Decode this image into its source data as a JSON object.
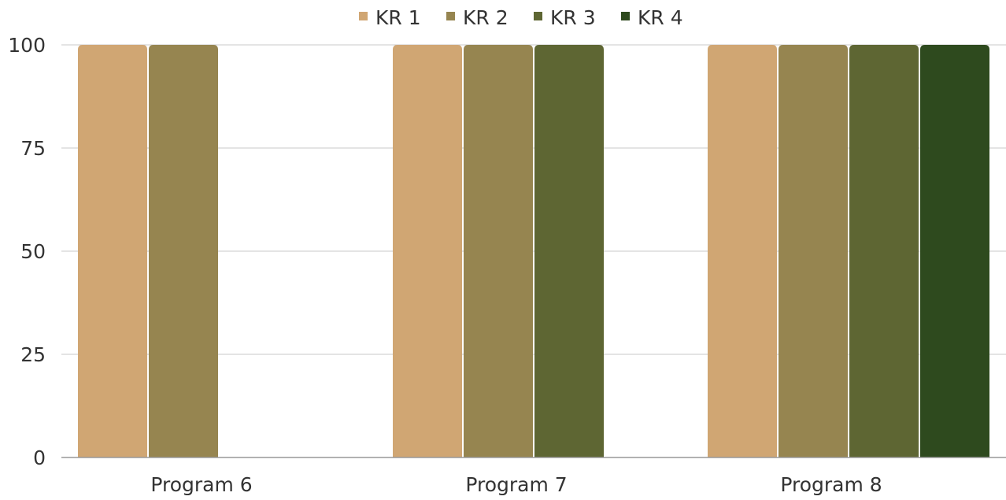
{
  "chart_data": {
    "type": "bar",
    "title": "",
    "xlabel": "",
    "ylabel": "",
    "categories": [
      "Program 6",
      "Program 7",
      "Program 8"
    ],
    "series": [
      {
        "name": "KR 1",
        "color": "#D0A673",
        "values": [
          100,
          100,
          100
        ]
      },
      {
        "name": "KR 2",
        "color": "#968550",
        "values": [
          100,
          100,
          100
        ]
      },
      {
        "name": "KR 3",
        "color": "#5E6633",
        "values": [
          null,
          100,
          100
        ]
      },
      {
        "name": "KR 4",
        "color": "#2E4A1E",
        "values": [
          null,
          null,
          100
        ]
      }
    ],
    "ylim": [
      0,
      100
    ],
    "yticks": [
      "0",
      "25",
      "50",
      "75",
      "100"
    ],
    "grid": true,
    "legend_position": "top-center"
  }
}
